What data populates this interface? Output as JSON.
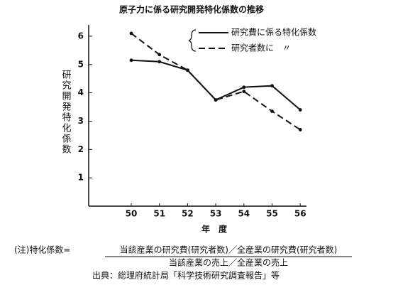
{
  "chart_data": {
    "type": "line",
    "title": "原子力に係る研究開発特化係数の推移",
    "y_label": "研究開発特化係数",
    "x_label": "年　度",
    "categories": [
      "50",
      "51",
      "52",
      "53",
      "54",
      "55",
      "56"
    ],
    "series": [
      {
        "name": "研究費に係る特化係数",
        "color": "#111111",
        "dash": false,
        "values": [
          5.15,
          5.1,
          4.8,
          3.75,
          4.2,
          4.25,
          3.4
        ]
      },
      {
        "name": "研究者数に　〃",
        "color": "#111111",
        "dash": true,
        "values": [
          6.1,
          5.35,
          4.8,
          3.75,
          4.05,
          3.35,
          2.7
        ]
      }
    ],
    "ylim": [
      0,
      6.4
    ],
    "yticks": [
      1,
      2,
      3,
      4,
      5,
      6
    ],
    "notes": {
      "label": "(注)特化係数=",
      "numerator": "当該産業の研究費(研究者数)／全産業の研究費(研究者数)",
      "denominator": "当該産業の売上／全産業の売上"
    },
    "source": "出典：総理府統計局「科学技術研究調査報告」等"
  }
}
